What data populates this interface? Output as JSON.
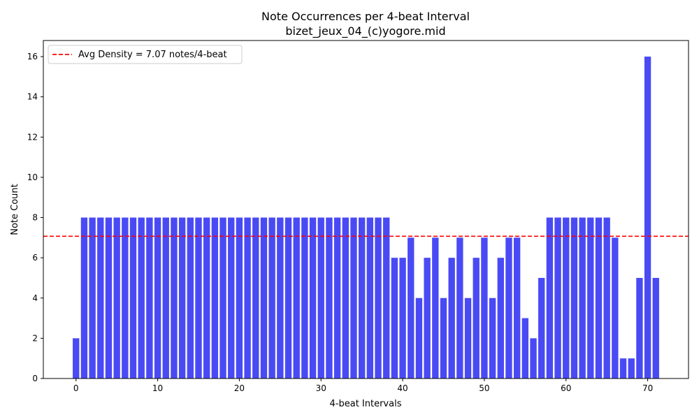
{
  "chart_data": {
    "type": "bar",
    "title": "Note Occurrences per 4-beat Interval",
    "subtitle": "bizet_jeux_04_(c)yogore.mid",
    "xlabel": "4-beat Intervals",
    "ylabel": "Note Count",
    "xlim": [
      -4,
      75
    ],
    "ylim": [
      0,
      16.8
    ],
    "xticks": [
      0,
      10,
      20,
      30,
      40,
      50,
      60,
      70
    ],
    "yticks": [
      0,
      2,
      4,
      6,
      8,
      10,
      12,
      14,
      16
    ],
    "grid": false,
    "bar_color": "#4a4af5",
    "x": [
      0,
      1,
      2,
      3,
      4,
      5,
      6,
      7,
      8,
      9,
      10,
      11,
      12,
      13,
      14,
      15,
      16,
      17,
      18,
      19,
      20,
      21,
      22,
      23,
      24,
      25,
      26,
      27,
      28,
      29,
      30,
      31,
      32,
      33,
      34,
      35,
      36,
      37,
      38,
      39,
      40,
      41,
      42,
      43,
      44,
      45,
      46,
      47,
      48,
      49,
      50,
      51,
      52,
      53,
      54,
      55,
      56,
      57,
      58,
      59,
      60,
      61,
      62,
      63,
      64,
      65,
      66,
      67,
      68,
      69,
      70,
      71
    ],
    "values": [
      2,
      8,
      8,
      8,
      8,
      8,
      8,
      8,
      8,
      8,
      8,
      8,
      8,
      8,
      8,
      8,
      8,
      8,
      8,
      8,
      8,
      8,
      8,
      8,
      8,
      8,
      8,
      8,
      8,
      8,
      8,
      8,
      8,
      8,
      8,
      8,
      8,
      8,
      8,
      6,
      6,
      7,
      4,
      6,
      7,
      4,
      6,
      7,
      4,
      6,
      7,
      4,
      6,
      7,
      7,
      3,
      2,
      5,
      8,
      8,
      8,
      8,
      8,
      8,
      8,
      8,
      7,
      1,
      1,
      5,
      16,
      5
    ],
    "reference_line": {
      "value": 7.07,
      "label": "Avg Density = 7.07 notes/4-beat",
      "color": "#ff0000",
      "style": "dashed"
    },
    "legend_placement": "top-left"
  }
}
